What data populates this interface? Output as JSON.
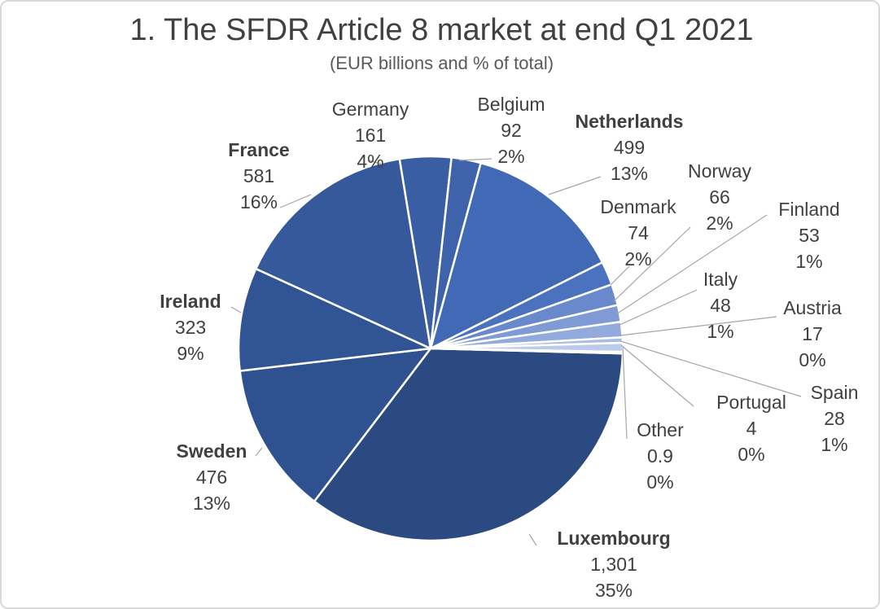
{
  "chart_data": {
    "type": "pie",
    "title": "1. The SFDR Article 8 market at end Q1 2021",
    "subtitle": "(EUR billions and % of total)",
    "slices": [
      {
        "name": "Luxembourg",
        "value": 1301,
        "value_label": "1,301",
        "percent_label": "35%",
        "color": "#2c4a82",
        "bold": true
      },
      {
        "name": "Sweden",
        "value": 476,
        "value_label": "476",
        "percent_label": "13%",
        "color": "#2f5190",
        "bold": true
      },
      {
        "name": "Ireland",
        "value": 323,
        "value_label": "323",
        "percent_label": "9%",
        "color": "#315594",
        "bold": true
      },
      {
        "name": "France",
        "value": 581,
        "value_label": "581",
        "percent_label": "16%",
        "color": "#35599b",
        "bold": true
      },
      {
        "name": "Germany",
        "value": 161,
        "value_label": "161",
        "percent_label": "4%",
        "color": "#3a5ea3",
        "bold": false
      },
      {
        "name": "Belgium",
        "value": 92,
        "value_label": "92",
        "percent_label": "2%",
        "color": "#3e63ab",
        "bold": false
      },
      {
        "name": "Netherlands",
        "value": 499,
        "value_label": "499",
        "percent_label": "13%",
        "color": "#4169b5",
        "bold": true
      },
      {
        "name": "Denmark",
        "value": 74,
        "value_label": "74",
        "percent_label": "2%",
        "color": "#4b72bf",
        "bold": false
      },
      {
        "name": "Norway",
        "value": 66,
        "value_label": "66",
        "percent_label": "2%",
        "color": "#6a89cc",
        "bold": false
      },
      {
        "name": "Finland",
        "value": 53,
        "value_label": "53",
        "percent_label": "1%",
        "color": "#7f9ad4",
        "bold": false
      },
      {
        "name": "Italy",
        "value": 48,
        "value_label": "48",
        "percent_label": "1%",
        "color": "#93abdc",
        "bold": false
      },
      {
        "name": "Austria",
        "value": 17,
        "value_label": "17",
        "percent_label": "0%",
        "color": "#a9bde4",
        "bold": false
      },
      {
        "name": "Spain",
        "value": 28,
        "value_label": "28",
        "percent_label": "1%",
        "color": "#bccbea",
        "bold": false
      },
      {
        "name": "Portugal",
        "value": 4,
        "value_label": "4",
        "percent_label": "0%",
        "color": "#cdd8ef",
        "bold": false
      },
      {
        "name": "Other",
        "value": 0.9,
        "value_label": "0.9",
        "percent_label": "0%",
        "color": "#dce4f4",
        "bold": false
      }
    ],
    "legend": "none"
  }
}
